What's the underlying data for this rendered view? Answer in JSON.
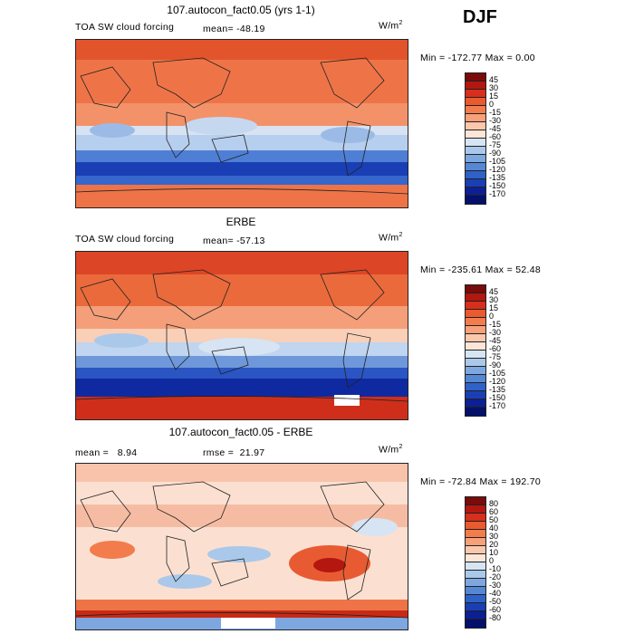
{
  "season": "DJF",
  "panels": [
    {
      "title": "107.autocon_fact0.05 (yrs 1-1)",
      "field": "TOA SW cloud forcing",
      "mean_label": "mean=",
      "mean": "-48.19",
      "units": "W/m",
      "units_exp": "2",
      "minmax": "Min = -172.77  Max =    0.00",
      "colorbar_labels": [
        "45",
        "30",
        "15",
        "0",
        "-15",
        "-30",
        "-45",
        "-60",
        "-75",
        "-90",
        "-105",
        "-120",
        "-135",
        "-150",
        "-170"
      ],
      "colorbar_colors": [
        "#7a0b0b",
        "#b3170f",
        "#d72f1b",
        "#ea5a2e",
        "#f27c4c",
        "#f7a07a",
        "#fbc7ad",
        "#fde6d8",
        "#d6e4f3",
        "#aac8ea",
        "#7ea7e0",
        "#5587d5",
        "#2f62c8",
        "#1a3fb5",
        "#0d1f95",
        "#05106a"
      ]
    },
    {
      "title": "ERBE",
      "field": "TOA SW cloud forcing",
      "mean_label": "mean=",
      "mean": "-57.13",
      "units": "W/m",
      "units_exp": "2",
      "minmax": "Min = -235.61  Max =  52.48",
      "colorbar_labels": [
        "45",
        "30",
        "15",
        "0",
        "-15",
        "-30",
        "-45",
        "-60",
        "-75",
        "-90",
        "-105",
        "-120",
        "-135",
        "-150",
        "-170"
      ],
      "colorbar_colors": [
        "#7a0b0b",
        "#b3170f",
        "#d72f1b",
        "#ea5a2e",
        "#f27c4c",
        "#f7a07a",
        "#fbc7ad",
        "#fde6d8",
        "#d6e4f3",
        "#aac8ea",
        "#7ea7e0",
        "#5587d5",
        "#2f62c8",
        "#1a3fb5",
        "#0d1f95",
        "#05106a"
      ]
    },
    {
      "title": "107.autocon_fact0.05 - ERBE",
      "mean_label": "mean =",
      "mean": "8.94",
      "rmse_label": "rmse =",
      "rmse": "21.97",
      "units": "W/m",
      "units_exp": "2",
      "minmax": "Min = -72.84  Max = 192.70",
      "colorbar_labels": [
        "80",
        "60",
        "50",
        "40",
        "30",
        "20",
        "10",
        "0",
        "-10",
        "-20",
        "-30",
        "-40",
        "-50",
        "-60",
        "-80"
      ],
      "colorbar_colors": [
        "#7a0b0b",
        "#b3170f",
        "#d72f1b",
        "#ea5a2e",
        "#f27c4c",
        "#f7a07a",
        "#fbc7ad",
        "#fde6d8",
        "#d6e4f3",
        "#aac8ea",
        "#7ea7e0",
        "#5587d5",
        "#2f62c8",
        "#1a3fb5",
        "#0d1f95",
        "#05106a"
      ]
    }
  ]
}
